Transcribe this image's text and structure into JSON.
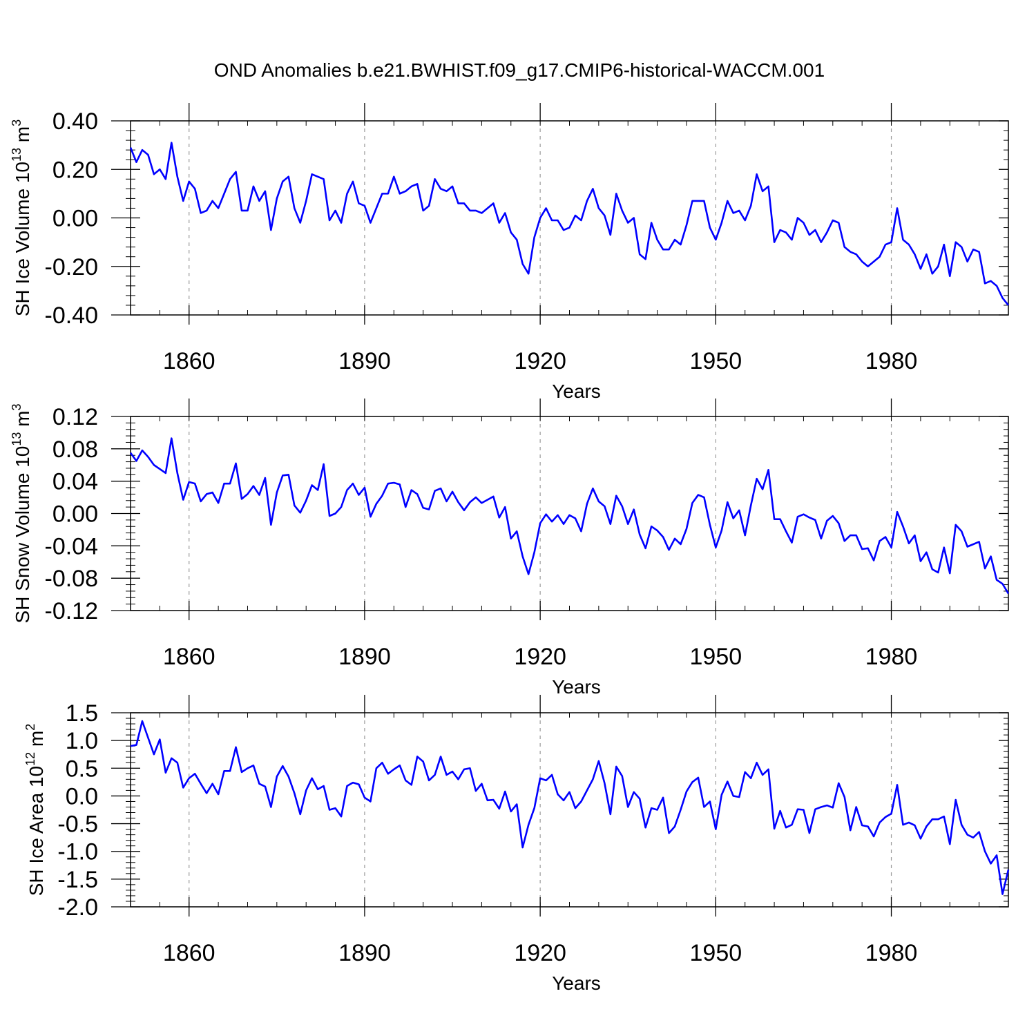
{
  "title": "OND Anomalies b.e21.BWHIST.f09_g17.CMIP6-historical-WACCM.001",
  "colors": {
    "line": "#0000ff",
    "axis": "#000000",
    "grid": "#999999",
    "background": "#ffffff"
  },
  "chart_data": [
    {
      "type": "line",
      "ylabel": "SH Ice Volume 10",
      "ylabel_exp": "13",
      "ylabel_unit": " m",
      "ylabel_unit_exp": "3",
      "xlabel": "Years",
      "xlim": [
        1850,
        2000
      ],
      "ylim": [
        -0.4,
        0.4
      ],
      "yticks": [
        0.4,
        0.2,
        0.0,
        -0.2,
        -0.4
      ],
      "ytick_labels": [
        "0.40",
        "0.20",
        "0.00",
        "-0.20",
        "-0.40"
      ],
      "xticks": [
        1860,
        1890,
        1920,
        1950,
        1980
      ],
      "xtick_labels": [
        "1860",
        "1890",
        "1920",
        "1950",
        "1980"
      ],
      "grid": "vertical dashed at major x ticks",
      "series": [
        {
          "x_start": 1850,
          "x_step": 1,
          "values": [
            0.29,
            0.23,
            0.28,
            0.26,
            0.18,
            0.2,
            0.16,
            0.31,
            0.17,
            0.07,
            0.15,
            0.12,
            0.02,
            0.03,
            0.07,
            0.04,
            0.1,
            0.16,
            0.19,
            0.03,
            0.03,
            0.13,
            0.07,
            0.11,
            -0.05,
            0.08,
            0.15,
            0.17,
            0.04,
            -0.02,
            0.07,
            0.18,
            0.17,
            0.16,
            -0.01,
            0.03,
            -0.02,
            0.1,
            0.15,
            0.06,
            0.05,
            -0.02,
            0.04,
            0.1,
            0.1,
            0.17,
            0.1,
            0.11,
            0.13,
            0.14,
            0.03,
            0.05,
            0.16,
            0.12,
            0.11,
            0.13,
            0.06,
            0.06,
            0.03,
            0.03,
            0.02,
            0.04,
            0.06,
            -0.02,
            0.02,
            -0.06,
            -0.09,
            -0.19,
            -0.23,
            -0.08,
            0.0,
            0.04,
            -0.01,
            -0.01,
            -0.05,
            -0.04,
            0.01,
            -0.01,
            0.07,
            0.12,
            0.04,
            0.01,
            -0.07,
            0.1,
            0.03,
            -0.02,
            0.0,
            -0.15,
            -0.17,
            -0.02,
            -0.09,
            -0.13,
            -0.13,
            -0.09,
            -0.11,
            -0.03,
            0.07,
            0.07,
            0.07,
            -0.04,
            -0.09,
            -0.02,
            0.07,
            0.02,
            0.03,
            -0.01,
            0.05,
            0.18,
            0.11,
            0.13,
            -0.1,
            -0.05,
            -0.06,
            -0.09,
            0.0,
            -0.02,
            -0.07,
            -0.05,
            -0.1,
            -0.06,
            -0.01,
            -0.02,
            -0.12,
            -0.14,
            -0.15,
            -0.18,
            -0.2,
            -0.18,
            -0.16,
            -0.11,
            -0.1,
            0.04,
            -0.09,
            -0.11,
            -0.15,
            -0.21,
            -0.15,
            -0.23,
            -0.2,
            -0.11,
            -0.24,
            -0.1,
            -0.12,
            -0.18,
            -0.13,
            -0.14,
            -0.27,
            -0.26,
            -0.28,
            -0.33,
            -0.36
          ]
        }
      ]
    },
    {
      "type": "line",
      "ylabel": "SH Snow Volume 10",
      "ylabel_exp": "13",
      "ylabel_unit": " m",
      "ylabel_unit_exp": "3",
      "xlabel": "Years",
      "xlim": [
        1850,
        2000
      ],
      "ylim": [
        -0.12,
        0.12
      ],
      "yticks": [
        0.12,
        0.08,
        0.04,
        0.0,
        -0.04,
        -0.08,
        -0.12
      ],
      "ytick_labels": [
        "0.12",
        "0.08",
        "0.04",
        "0.00",
        "-0.04",
        "-0.08",
        "-0.12"
      ],
      "xticks": [
        1860,
        1890,
        1920,
        1950,
        1980
      ],
      "xtick_labels": [
        "1860",
        "1890",
        "1920",
        "1950",
        "1980"
      ],
      "grid": "vertical dashed at major x ticks",
      "series": [
        {
          "x_start": 1850,
          "x_step": 1,
          "values": [
            0.075,
            0.065,
            0.078,
            0.07,
            0.06,
            0.055,
            0.05,
            0.093,
            0.05,
            0.017,
            0.039,
            0.037,
            0.015,
            0.024,
            0.026,
            0.013,
            0.037,
            0.037,
            0.062,
            0.018,
            0.024,
            0.034,
            0.023,
            0.044,
            -0.014,
            0.026,
            0.047,
            0.048,
            0.01,
            0.001,
            0.016,
            0.035,
            0.029,
            0.061,
            -0.003,
            0.0,
            0.008,
            0.029,
            0.037,
            0.023,
            0.032,
            -0.004,
            0.012,
            0.022,
            0.037,
            0.038,
            0.036,
            0.008,
            0.029,
            0.024,
            0.007,
            0.005,
            0.028,
            0.031,
            0.015,
            0.027,
            0.014,
            0.004,
            0.014,
            0.02,
            0.013,
            0.017,
            0.021,
            -0.005,
            0.008,
            -0.031,
            -0.022,
            -0.053,
            -0.075,
            -0.048,
            -0.012,
            -0.001,
            -0.01,
            -0.002,
            -0.013,
            -0.002,
            -0.006,
            -0.022,
            0.012,
            0.031,
            0.015,
            0.009,
            -0.013,
            0.022,
            0.009,
            -0.013,
            0.005,
            -0.026,
            -0.043,
            -0.016,
            -0.021,
            -0.029,
            -0.045,
            -0.031,
            -0.038,
            -0.019,
            0.013,
            0.023,
            0.02,
            -0.014,
            -0.042,
            -0.021,
            0.014,
            -0.006,
            0.004,
            -0.027,
            0.01,
            0.043,
            0.03,
            0.054,
            -0.007,
            -0.007,
            -0.022,
            -0.036,
            -0.004,
            -0.001,
            -0.005,
            -0.008,
            -0.031,
            -0.009,
            -0.003,
            -0.012,
            -0.034,
            -0.027,
            -0.027,
            -0.044,
            -0.043,
            -0.058,
            -0.034,
            -0.029,
            -0.042,
            0.002,
            -0.016,
            -0.037,
            -0.027,
            -0.059,
            -0.048,
            -0.069,
            -0.073,
            -0.042,
            -0.074,
            -0.014,
            -0.022,
            -0.041,
            -0.038,
            -0.035,
            -0.068,
            -0.053,
            -0.082,
            -0.087,
            -0.099
          ]
        }
      ]
    },
    {
      "type": "line",
      "ylabel": "SH Ice Area 10",
      "ylabel_exp": "12",
      "ylabel_unit": " m",
      "ylabel_unit_exp": "2",
      "xlabel": "Years",
      "xlim": [
        1850,
        2000
      ],
      "ylim": [
        -2.0,
        1.5
      ],
      "yticks": [
        1.5,
        1.0,
        0.5,
        0.0,
        -0.5,
        -1.0,
        -1.5,
        -2.0
      ],
      "ytick_labels": [
        "1.5",
        "1.0",
        "0.5",
        "0.0",
        "-0.5",
        "-1.0",
        "-1.5",
        "-2.0"
      ],
      "xticks": [
        1860,
        1890,
        1920,
        1950,
        1980
      ],
      "xtick_labels": [
        "1860",
        "1890",
        "1920",
        "1950",
        "1980"
      ],
      "grid": "vertical dashed at major x ticks",
      "series": [
        {
          "x_start": 1850,
          "x_step": 1,
          "values": [
            0.9,
            0.92,
            1.35,
            1.05,
            0.75,
            1.02,
            0.42,
            0.68,
            0.6,
            0.15,
            0.32,
            0.4,
            0.22,
            0.05,
            0.22,
            0.03,
            0.45,
            0.45,
            0.88,
            0.43,
            0.5,
            0.55,
            0.22,
            0.17,
            -0.2,
            0.35,
            0.54,
            0.35,
            0.05,
            -0.33,
            0.1,
            0.32,
            0.12,
            0.18,
            -0.25,
            -0.22,
            -0.37,
            0.18,
            0.24,
            0.21,
            -0.03,
            -0.1,
            0.5,
            0.6,
            0.4,
            0.48,
            0.55,
            0.28,
            0.2,
            0.71,
            0.62,
            0.28,
            0.38,
            0.71,
            0.38,
            0.44,
            0.3,
            0.48,
            0.5,
            0.09,
            0.22,
            -0.08,
            -0.07,
            -0.23,
            0.08,
            -0.28,
            -0.15,
            -0.93,
            -0.52,
            -0.22,
            0.32,
            0.28,
            0.38,
            0.03,
            -0.08,
            0.07,
            -0.22,
            -0.1,
            0.1,
            0.3,
            0.63,
            0.23,
            -0.33,
            0.53,
            0.36,
            -0.2,
            0.07,
            -0.05,
            -0.57,
            -0.22,
            -0.25,
            -0.03,
            -0.67,
            -0.55,
            -0.25,
            0.08,
            0.25,
            0.33,
            -0.2,
            -0.1,
            -0.6,
            0.02,
            0.26,
            0.0,
            -0.02,
            0.43,
            0.32,
            0.6,
            0.38,
            0.48,
            -0.59,
            -0.27,
            -0.57,
            -0.52,
            -0.24,
            -0.25,
            -0.67,
            -0.24,
            -0.2,
            -0.17,
            -0.21,
            0.23,
            -0.02,
            -0.62,
            -0.2,
            -0.53,
            -0.55,
            -0.73,
            -0.48,
            -0.38,
            -0.32,
            0.2,
            -0.52,
            -0.48,
            -0.53,
            -0.77,
            -0.55,
            -0.42,
            -0.42,
            -0.37,
            -0.87,
            -0.07,
            -0.52,
            -0.7,
            -0.75,
            -0.65,
            -1.0,
            -1.22,
            -1.07,
            -1.77,
            -1.33
          ]
        }
      ]
    }
  ]
}
